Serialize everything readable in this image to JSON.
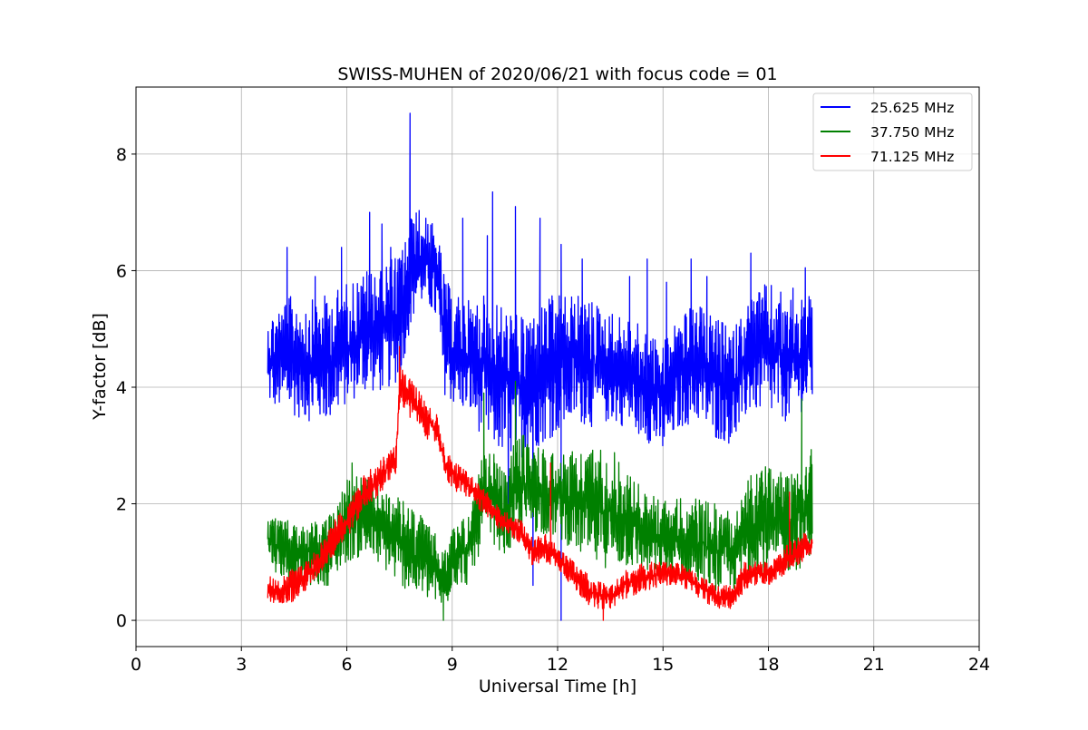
{
  "chart_data": {
    "type": "line",
    "title": "SWISS-MUHEN of 2020/06/21 with focus code = 01",
    "xlabel": "Universal Time [h]",
    "ylabel": "Y-factor [dB]",
    "xlim": [
      0,
      24
    ],
    "ylim": [
      -0.45,
      9.15
    ],
    "xticks": [
      0,
      3,
      6,
      9,
      12,
      15,
      18,
      21,
      24
    ],
    "yticks": [
      0,
      2,
      4,
      6,
      8
    ],
    "xtick_labels": [
      "0",
      "3",
      "6",
      "9",
      "12",
      "15",
      "18",
      "21",
      "24"
    ],
    "ytick_labels": [
      "0",
      "2",
      "4",
      "6",
      "8"
    ],
    "grid": true,
    "legend_position": "top-right",
    "series": [
      {
        "name": "25.625 MHz",
        "color": "#0000ff",
        "x": [
          3.75,
          4.0,
          4.5,
          5.0,
          5.5,
          6.0,
          6.5,
          7.0,
          7.5,
          7.8,
          8.0,
          8.3,
          8.6,
          8.75,
          9.0,
          9.5,
          10.0,
          10.5,
          11.0,
          11.5,
          12.0,
          12.5,
          13.0,
          13.5,
          14.0,
          14.5,
          15.0,
          15.5,
          16.0,
          16.5,
          17.0,
          17.5,
          18.0,
          18.5,
          19.0,
          19.25
        ],
        "low": [
          3.7,
          3.6,
          3.5,
          3.4,
          3.4,
          3.7,
          3.9,
          3.9,
          4.1,
          5.0,
          5.4,
          5.4,
          5.0,
          3.9,
          3.7,
          3.5,
          3.0,
          2.8,
          2.8,
          3.0,
          3.2,
          3.4,
          3.3,
          3.4,
          3.3,
          3.1,
          2.8,
          3.3,
          3.4,
          3.1,
          3.0,
          3.6,
          3.5,
          3.4,
          3.6,
          3.7
        ],
        "high": [
          5.2,
          5.4,
          5.6,
          5.5,
          5.6,
          5.8,
          6.0,
          6.2,
          6.3,
          6.9,
          7.1,
          6.9,
          6.7,
          6.0,
          5.6,
          5.5,
          5.6,
          5.4,
          5.2,
          5.5,
          5.6,
          5.6,
          5.5,
          5.3,
          5.2,
          5.0,
          4.8,
          5.3,
          5.4,
          5.2,
          5.0,
          5.6,
          5.8,
          5.6,
          5.5,
          5.6
        ],
        "spikes": [
          [
            4.3,
            6.4
          ],
          [
            5.1,
            5.9
          ],
          [
            5.85,
            6.4
          ],
          [
            6.65,
            7.0
          ],
          [
            7.0,
            6.8
          ],
          [
            7.25,
            6.4
          ],
          [
            7.8,
            8.7
          ],
          [
            8.25,
            6.9
          ],
          [
            9.3,
            6.9
          ],
          [
            10.0,
            6.6
          ],
          [
            10.15,
            7.35
          ],
          [
            10.8,
            7.1
          ],
          [
            11.5,
            6.9
          ],
          [
            12.1,
            6.45
          ],
          [
            12.7,
            6.2
          ],
          [
            14.05,
            5.9
          ],
          [
            14.55,
            6.2
          ],
          [
            15.1,
            5.8
          ],
          [
            15.8,
            6.2
          ],
          [
            16.25,
            5.9
          ],
          [
            17.5,
            6.3
          ],
          [
            18.7,
            5.7
          ],
          [
            19.05,
            6.05
          ]
        ],
        "dips": [
          [
            11.3,
            0.6
          ],
          [
            12.1,
            0.0
          ],
          [
            10.6,
            1.6
          ]
        ]
      },
      {
        "name": "37.750 MHz",
        "color": "#008000",
        "x": [
          3.75,
          4.0,
          4.5,
          5.0,
          5.5,
          6.0,
          6.5,
          7.0,
          7.5,
          8.0,
          8.5,
          8.8,
          9.0,
          9.5,
          9.9,
          10.2,
          10.5,
          10.8,
          11.0,
          11.5,
          12.0,
          12.5,
          13.0,
          13.5,
          14.0,
          14.5,
          15.0,
          15.5,
          16.0,
          16.5,
          17.0,
          17.5,
          18.0,
          18.5,
          19.0,
          19.25
        ],
        "low": [
          1.1,
          0.8,
          0.6,
          0.6,
          0.6,
          1.0,
          1.1,
          0.9,
          0.6,
          0.4,
          0.3,
          0.1,
          0.6,
          0.6,
          1.4,
          1.3,
          1.1,
          1.2,
          1.5,
          1.5,
          1.4,
          1.2,
          0.9,
          0.9,
          0.9,
          0.8,
          0.7,
          0.7,
          0.6,
          0.5,
          0.5,
          0.8,
          0.8,
          0.8,
          0.9,
          1.2
        ],
        "high": [
          1.8,
          1.8,
          1.7,
          1.7,
          1.8,
          2.5,
          2.5,
          2.3,
          2.1,
          1.9,
          1.5,
          1.2,
          1.6,
          1.9,
          2.9,
          2.9,
          2.5,
          3.2,
          3.2,
          3.0,
          2.9,
          2.9,
          3.0,
          3.0,
          2.6,
          2.2,
          2.1,
          2.1,
          2.1,
          2.0,
          1.9,
          2.5,
          2.7,
          2.6,
          2.9,
          3.2
        ],
        "spikes": [
          [
            6.15,
            2.7
          ],
          [
            9.9,
            3.9
          ],
          [
            10.8,
            4.1
          ],
          [
            18.95,
            3.8
          ]
        ],
        "dips": [
          [
            8.75,
            0.0
          ]
        ]
      },
      {
        "name": "71.125 MHz",
        "color": "#ff0000",
        "x": [
          3.75,
          4.0,
          4.5,
          5.0,
          5.5,
          6.0,
          6.5,
          7.0,
          7.4,
          7.5,
          7.8,
          8.0,
          8.3,
          8.6,
          8.8,
          9.0,
          9.5,
          10.0,
          10.5,
          11.0,
          11.3,
          11.6,
          12.0,
          12.5,
          13.0,
          13.5,
          14.0,
          14.5,
          15.0,
          15.5,
          16.0,
          16.5,
          17.0,
          17.3,
          17.6,
          18.0,
          18.5,
          19.0,
          19.25
        ],
        "low": [
          0.3,
          0.3,
          0.3,
          0.6,
          1.0,
          1.4,
          1.9,
          2.2,
          2.5,
          3.7,
          3.4,
          3.4,
          3.1,
          3.0,
          2.5,
          2.2,
          2.1,
          1.7,
          1.5,
          1.3,
          0.9,
          1.0,
          0.9,
          0.5,
          0.2,
          0.2,
          0.4,
          0.5,
          0.6,
          0.6,
          0.4,
          0.2,
          0.2,
          0.5,
          0.6,
          0.6,
          0.8,
          1.0,
          1.1
        ],
        "high": [
          0.8,
          0.7,
          0.9,
          1.1,
          1.6,
          2.0,
          2.5,
          2.8,
          3.0,
          4.4,
          4.2,
          4.0,
          3.7,
          3.5,
          2.9,
          2.8,
          2.5,
          2.2,
          1.9,
          1.7,
          1.4,
          1.5,
          1.3,
          1.0,
          0.7,
          0.6,
          0.9,
          1.0,
          1.0,
          1.0,
          0.8,
          0.6,
          0.6,
          1.0,
          1.0,
          1.0,
          1.3,
          1.5,
          1.5
        ],
        "spikes": [
          [
            7.5,
            4.7
          ],
          [
            11.8,
            2.7
          ],
          [
            18.6,
            2.2
          ]
        ],
        "dips": [
          [
            13.3,
            0.0
          ]
        ]
      }
    ]
  }
}
